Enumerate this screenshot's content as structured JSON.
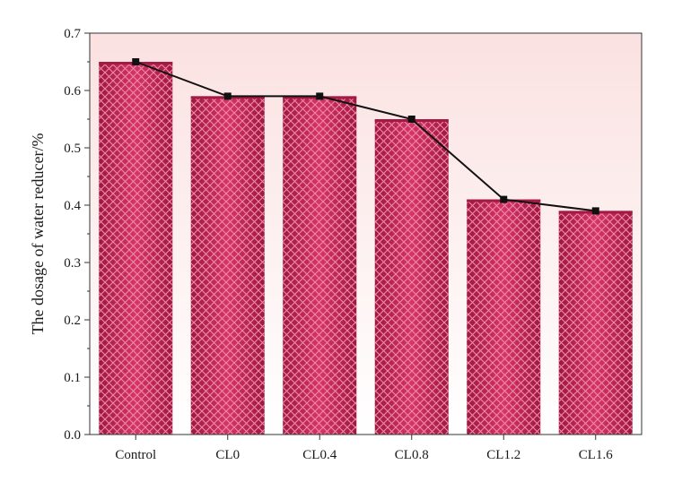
{
  "chart_data": {
    "type": "bar",
    "title": "",
    "xlabel": "",
    "ylabel": "The dosage of water reducer/%",
    "categories": [
      "Control",
      "CL0",
      "CL0.4",
      "CL0.8",
      "CL1.2",
      "CL1.6"
    ],
    "values": [
      0.65,
      0.59,
      0.59,
      0.55,
      0.41,
      0.39
    ],
    "line_overlay": {
      "values": [
        0.65,
        0.59,
        0.59,
        0.55,
        0.41,
        0.39
      ],
      "color": "#111111",
      "marker": "square"
    },
    "ylim": [
      0.0,
      0.7
    ],
    "yticks": [
      "0.0",
      "0.1",
      "0.2",
      "0.3",
      "0.4",
      "0.5",
      "0.6",
      "0.7"
    ],
    "grid": false,
    "legend": "none",
    "colors": {
      "bar_fill": "#c8285a",
      "bar_dark": "#9e1840",
      "hatch": "#f08aa8",
      "plot_background_top": "#fbe1e1",
      "plot_background_bottom": "#ffffff",
      "line": "#111111"
    }
  }
}
